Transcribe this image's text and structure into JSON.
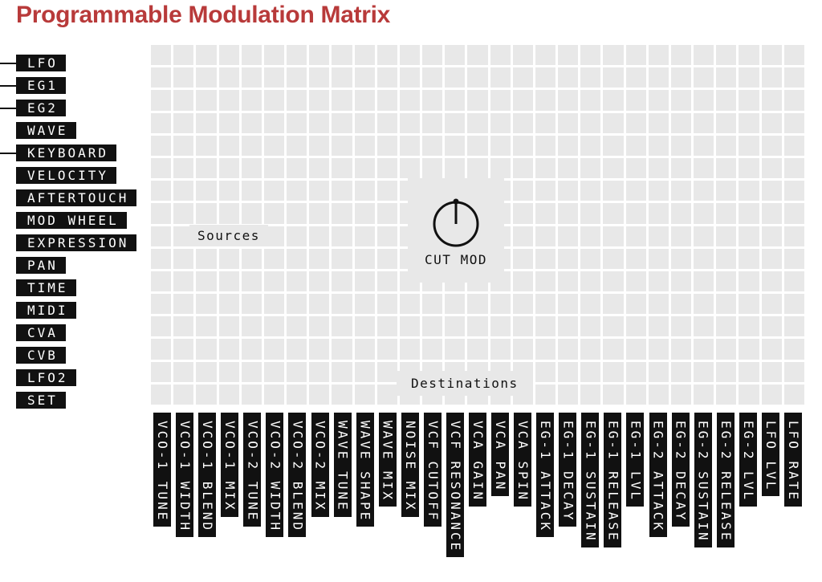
{
  "title": "Programmable Modulation Matrix",
  "sources": [
    {
      "label": "LFO",
      "connected": true
    },
    {
      "label": "EG1",
      "connected": true
    },
    {
      "label": "EG2",
      "connected": true
    },
    {
      "label": "WAVE",
      "connected": false
    },
    {
      "label": "KEYBOARD",
      "connected": true
    },
    {
      "label": "VELOCITY",
      "connected": false
    },
    {
      "label": "AFTERTOUCH",
      "connected": false
    },
    {
      "label": "MOD WHEEL",
      "connected": false
    },
    {
      "label": "EXPRESSION",
      "connected": false
    },
    {
      "label": "PAN",
      "connected": false
    },
    {
      "label": "TIME",
      "connected": false
    },
    {
      "label": "MIDI",
      "connected": false
    },
    {
      "label": "CVA",
      "connected": false
    },
    {
      "label": "CVB",
      "connected": false
    },
    {
      "label": "LFO2",
      "connected": false
    },
    {
      "label": "SET",
      "connected": false
    }
  ],
  "destinations": [
    "VCO-1 TUNE",
    "VCO-1 WIDTH",
    "VCO-1 BLEND",
    "VCO-1 MIX",
    "VCO-2 TUNE",
    "VCO-2 WIDTH",
    "VCO-2 BLEND",
    "VCO-2 MIX",
    "WAVE TUNE",
    "WAVE SHAPE",
    "WAVE MIX",
    "NOISE MIX",
    "VCF CUTOFF",
    "VCF RESONANCE",
    "VCA GAIN",
    "VCA PAN",
    "VCA SPIN",
    "EG-1 ATTACK",
    "EG-1 DECAY",
    "EG-1 SUSTAIN",
    "EG-1 RELEASE",
    "EG-1 LVL",
    "EG-2 ATTACK",
    "EG-2 DECAY",
    "EG-2 SUSTAIN",
    "EG-2 RELEASE",
    "EG-2 LVL",
    "LFO LVL",
    "LFO RATE"
  ],
  "grid": {
    "rows": 16,
    "cols": 29
  },
  "overlays": {
    "sources_label": "Sources",
    "destinations_label": "Destinations",
    "knob_label": "CUT MOD",
    "knob_icon": "knob-icon"
  },
  "colors": {
    "title": "#b83a3a",
    "label_bg": "#111111",
    "cell": "#e8e8e8"
  }
}
